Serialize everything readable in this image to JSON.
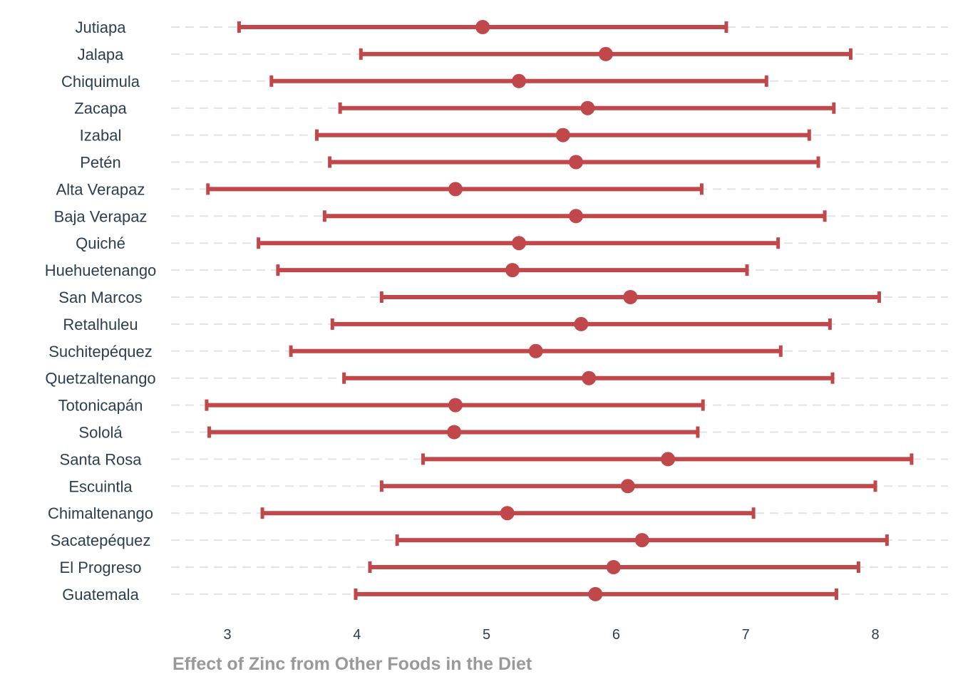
{
  "chart_data": {
    "type": "errorbar",
    "title": "",
    "xlabel": "Effect of Zinc from Other Foods in the Diet",
    "ylabel": "",
    "xlim": [
      2.6,
      8.5
    ],
    "xticks": [
      "3",
      "4",
      "5",
      "6",
      "7",
      "8"
    ],
    "grid": "horizontal dashed",
    "colors": {
      "series": "#c0474a",
      "grid": "#e3e3e3",
      "text": "#2c3e50",
      "xlabel": "#999999"
    },
    "categories": [
      "Jutiapa",
      "Jalapa",
      "Chiquimula",
      "Zacapa",
      "Izabal",
      "Petén",
      "Alta Verapaz",
      "Baja Verapaz",
      "Quiché",
      "Huehuetenango",
      "San Marcos",
      "Retalhuleu",
      "Suchitepéquez",
      "Quetzaltenango",
      "Totonicapán",
      "Sololá",
      "Santa Rosa",
      "Escuintla",
      "Chimaltenango",
      "Sacatepéquez",
      "El Progreso",
      "Guatemala"
    ],
    "estimate": [
      4.97,
      5.92,
      5.25,
      5.78,
      5.59,
      5.69,
      4.76,
      5.69,
      5.25,
      5.2,
      6.11,
      5.73,
      5.38,
      5.79,
      4.76,
      4.75,
      6.4,
      6.09,
      5.16,
      6.2,
      5.98,
      5.84
    ],
    "lower": [
      3.09,
      4.03,
      3.34,
      3.87,
      3.69,
      3.79,
      2.85,
      3.75,
      3.24,
      3.39,
      4.19,
      3.81,
      3.49,
      3.9,
      2.84,
      2.86,
      4.51,
      4.19,
      3.27,
      4.31,
      4.1,
      3.99
    ],
    "upper": [
      6.85,
      7.81,
      7.16,
      7.68,
      7.49,
      7.56,
      6.66,
      7.61,
      7.25,
      7.01,
      8.03,
      7.65,
      7.27,
      7.67,
      6.67,
      6.63,
      8.28,
      8.0,
      7.06,
      8.09,
      7.87,
      7.7
    ]
  }
}
